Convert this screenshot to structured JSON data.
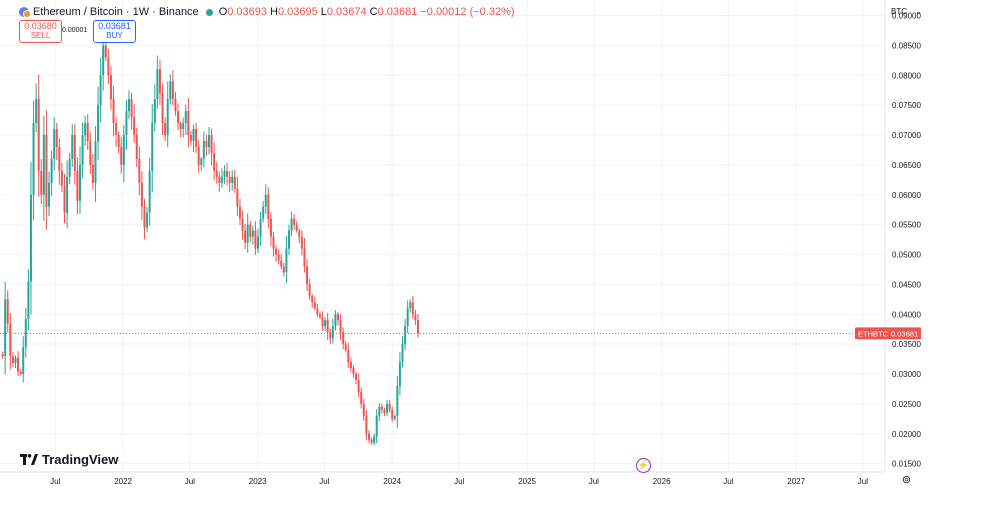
{
  "legend": {
    "title": "Ethereum / Bitcoin · 1W · Binance",
    "o_label": "O",
    "o_value": "0.03693",
    "h_label": "H",
    "h_value": "0.03695",
    "l_label": "L",
    "l_value": "0.03674",
    "c_label": "C",
    "c_value": "0.03681",
    "change": "−0.00012 (−0.32%)"
  },
  "trade": {
    "sell_price": "0.03680",
    "sell_label": "SELL",
    "spread": "0.00001",
    "buy_price": "0.03681",
    "buy_label": "BUY"
  },
  "currency": {
    "label": "BTC",
    "icon": "chevron-down-icon"
  },
  "watermark": "TradingView",
  "price_tag": {
    "symbol": "ETHBTC",
    "value": "0.03681"
  },
  "colors": {
    "up": "#26a69a",
    "down": "#ef5350",
    "grid": "#f0f3fa",
    "last_line": "#ef5350"
  },
  "chart_data": {
    "type": "candlestick",
    "symbol": "ETHBTC",
    "interval": "1W",
    "ylim": [
      0.0136,
      0.0926
    ],
    "x_range": [
      "2021-02-01",
      "2027-08-30"
    ],
    "y_ticks": [
      "0.09000",
      "0.08500",
      "0.08000",
      "0.07500",
      "0.07000",
      "0.06500",
      "0.06000",
      "0.05500",
      "0.05000",
      "0.04500",
      "0.04000",
      "0.03500",
      "0.03000",
      "0.02500",
      "0.02000",
      "0.01500"
    ],
    "x_ticks": [
      {
        "label": "Jul",
        "date": "2021-07-01"
      },
      {
        "label": "2022",
        "date": "2022-01-01"
      },
      {
        "label": "Jul",
        "date": "2022-07-01"
      },
      {
        "label": "2023",
        "date": "2023-01-01"
      },
      {
        "label": "Jul",
        "date": "2023-07-01"
      },
      {
        "label": "2024",
        "date": "2024-01-01"
      },
      {
        "label": "Jul",
        "date": "2024-07-01"
      },
      {
        "label": "2025",
        "date": "2025-01-01"
      },
      {
        "label": "Jul",
        "date": "2025-07-01"
      },
      {
        "label": "2026",
        "date": "2026-01-01"
      },
      {
        "label": "Jul",
        "date": "2026-07-01"
      },
      {
        "label": "2027",
        "date": "2027-01-01"
      },
      {
        "label": "Jul",
        "date": "2027-07-01"
      }
    ],
    "last_price": 0.03681,
    "grid": true,
    "start_date": "2021-02-08",
    "weekly_closes": [
      0.033,
      0.0425,
      0.0385,
      0.033,
      0.0318,
      0.0327,
      0.0304,
      0.03,
      0.0345,
      0.0392,
      0.0455,
      0.06,
      0.072,
      0.076,
      0.064,
      0.06,
      0.07,
      0.058,
      0.062,
      0.066,
      0.071,
      0.068,
      0.064,
      0.0615,
      0.057,
      0.063,
      0.066,
      0.07,
      0.064,
      0.059,
      0.065,
      0.07,
      0.072,
      0.069,
      0.065,
      0.062,
      0.069,
      0.075,
      0.08,
      0.085,
      0.083,
      0.08,
      0.076,
      0.072,
      0.07,
      0.068,
      0.065,
      0.07,
      0.074,
      0.076,
      0.073,
      0.07,
      0.066,
      0.062,
      0.058,
      0.0545,
      0.057,
      0.064,
      0.072,
      0.076,
      0.081,
      0.077,
      0.072,
      0.07,
      0.076,
      0.079,
      0.076,
      0.074,
      0.072,
      0.071,
      0.072,
      0.074,
      0.07,
      0.069,
      0.071,
      0.068,
      0.065,
      0.066,
      0.069,
      0.068,
      0.07,
      0.067,
      0.064,
      0.063,
      0.062,
      0.063,
      0.064,
      0.063,
      0.062,
      0.063,
      0.061,
      0.058,
      0.056,
      0.054,
      0.052,
      0.055,
      0.053,
      0.054,
      0.051,
      0.053,
      0.056,
      0.058,
      0.06,
      0.056,
      0.053,
      0.051,
      0.05,
      0.049,
      0.048,
      0.047,
      0.051,
      0.054,
      0.056,
      0.055,
      0.054,
      0.053,
      0.051,
      0.048,
      0.045,
      0.043,
      0.042,
      0.041,
      0.04,
      0.0395,
      0.038,
      0.039,
      0.037,
      0.036,
      0.038,
      0.04,
      0.039,
      0.037,
      0.035,
      0.034,
      0.032,
      0.031,
      0.03,
      0.029,
      0.027,
      0.025,
      0.023,
      0.02,
      0.019,
      0.0185,
      0.0195,
      0.023,
      0.0245,
      0.024,
      0.0235,
      0.025,
      0.024,
      0.0225,
      0.023,
      0.028,
      0.032,
      0.035,
      0.038,
      0.041,
      0.042,
      0.04,
      0.039,
      0.0368
    ]
  }
}
